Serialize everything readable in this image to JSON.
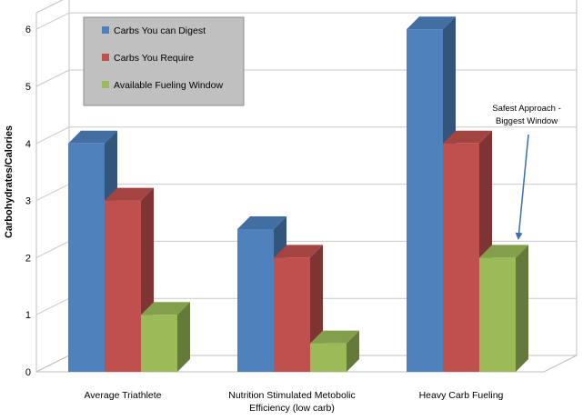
{
  "chart_data": {
    "type": "bar",
    "style": "3d-clustered-column",
    "categories": [
      "Average Triathlete",
      "Nutrition Stimulated Metobolic Efficiency (low carb)",
      "Heavy Carb Fueling"
    ],
    "category_lines": [
      [
        "Average Triathlete"
      ],
      [
        "Nutrition Stimulated Metobolic",
        "Efficiency (low carb)"
      ],
      [
        "Heavy Carb Fueling"
      ]
    ],
    "series": [
      {
        "name": "Carbs You can Digest",
        "values": [
          4,
          2.5,
          6
        ],
        "color": "#4F81BD"
      },
      {
        "name": "Carbs You Require",
        "values": [
          3,
          2,
          4
        ],
        "color": "#C0504D"
      },
      {
        "name": "Available Fueling Window",
        "values": [
          1,
          0.5,
          2
        ],
        "color": "#9BBB59"
      }
    ],
    "ylabel": "Carbohydrates/Calories",
    "xlabel": "",
    "ylim": [
      0,
      6
    ],
    "yticks": [
      "0",
      "1",
      "2",
      "3",
      "4",
      "5",
      "6"
    ],
    "grid": true,
    "legend_position": "top-left",
    "annotation": {
      "lines": [
        "Safest Approach -",
        "Biggest Window"
      ],
      "target": "Heavy Carb Fueling / Available Fueling Window"
    }
  }
}
